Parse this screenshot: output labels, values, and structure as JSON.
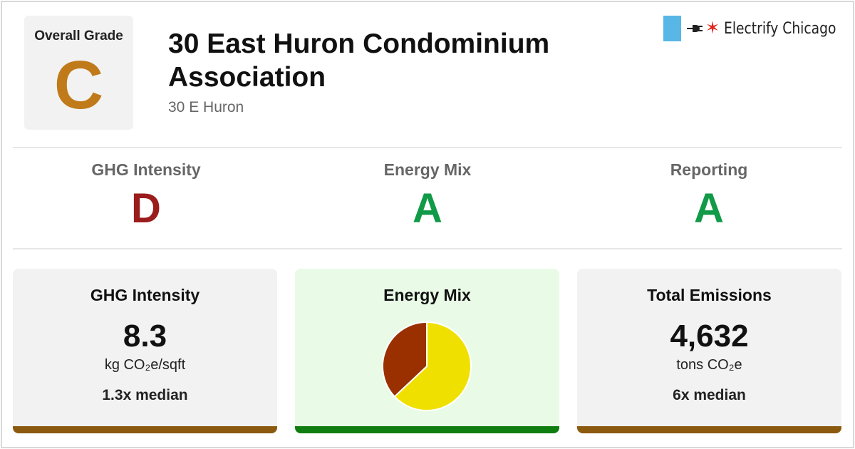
{
  "overall": {
    "label": "Overall Grade",
    "grade": "C",
    "color": "#c07a1a"
  },
  "building": {
    "name": "30 East Huron Condominium Association",
    "address": "30 E Huron"
  },
  "logo": {
    "text": "Electrify Chicago",
    "bar_color": "#58b7e6",
    "star_color": "#e1261c",
    "icons": [
      "plug-icon",
      "star-icon"
    ]
  },
  "grades": [
    {
      "label": "GHG Intensity",
      "grade": "D",
      "color": "#9b1c1c"
    },
    {
      "label": "Energy Mix",
      "grade": "A",
      "color": "#119a47"
    },
    {
      "label": "Reporting",
      "grade": "A",
      "color": "#119a47"
    }
  ],
  "cards": {
    "ghg": {
      "title": "GHG Intensity",
      "value": "8.3",
      "unit": "kg CO₂e/sqft",
      "median": "1.3x median",
      "bar_color": "#8b5a0f"
    },
    "mix": {
      "title": "Energy Mix",
      "bar_color": "#0f7d0f"
    },
    "emissions": {
      "title": "Total Emissions",
      "value": "4,632",
      "unit": "tons CO₂e",
      "median": "6x median",
      "bar_color": "#8b5a0f"
    }
  },
  "chart_data": {
    "type": "pie",
    "slices": [
      {
        "value": 63,
        "color": "#f0e000"
      },
      {
        "value": 37,
        "color": "#9a3000"
      }
    ]
  }
}
